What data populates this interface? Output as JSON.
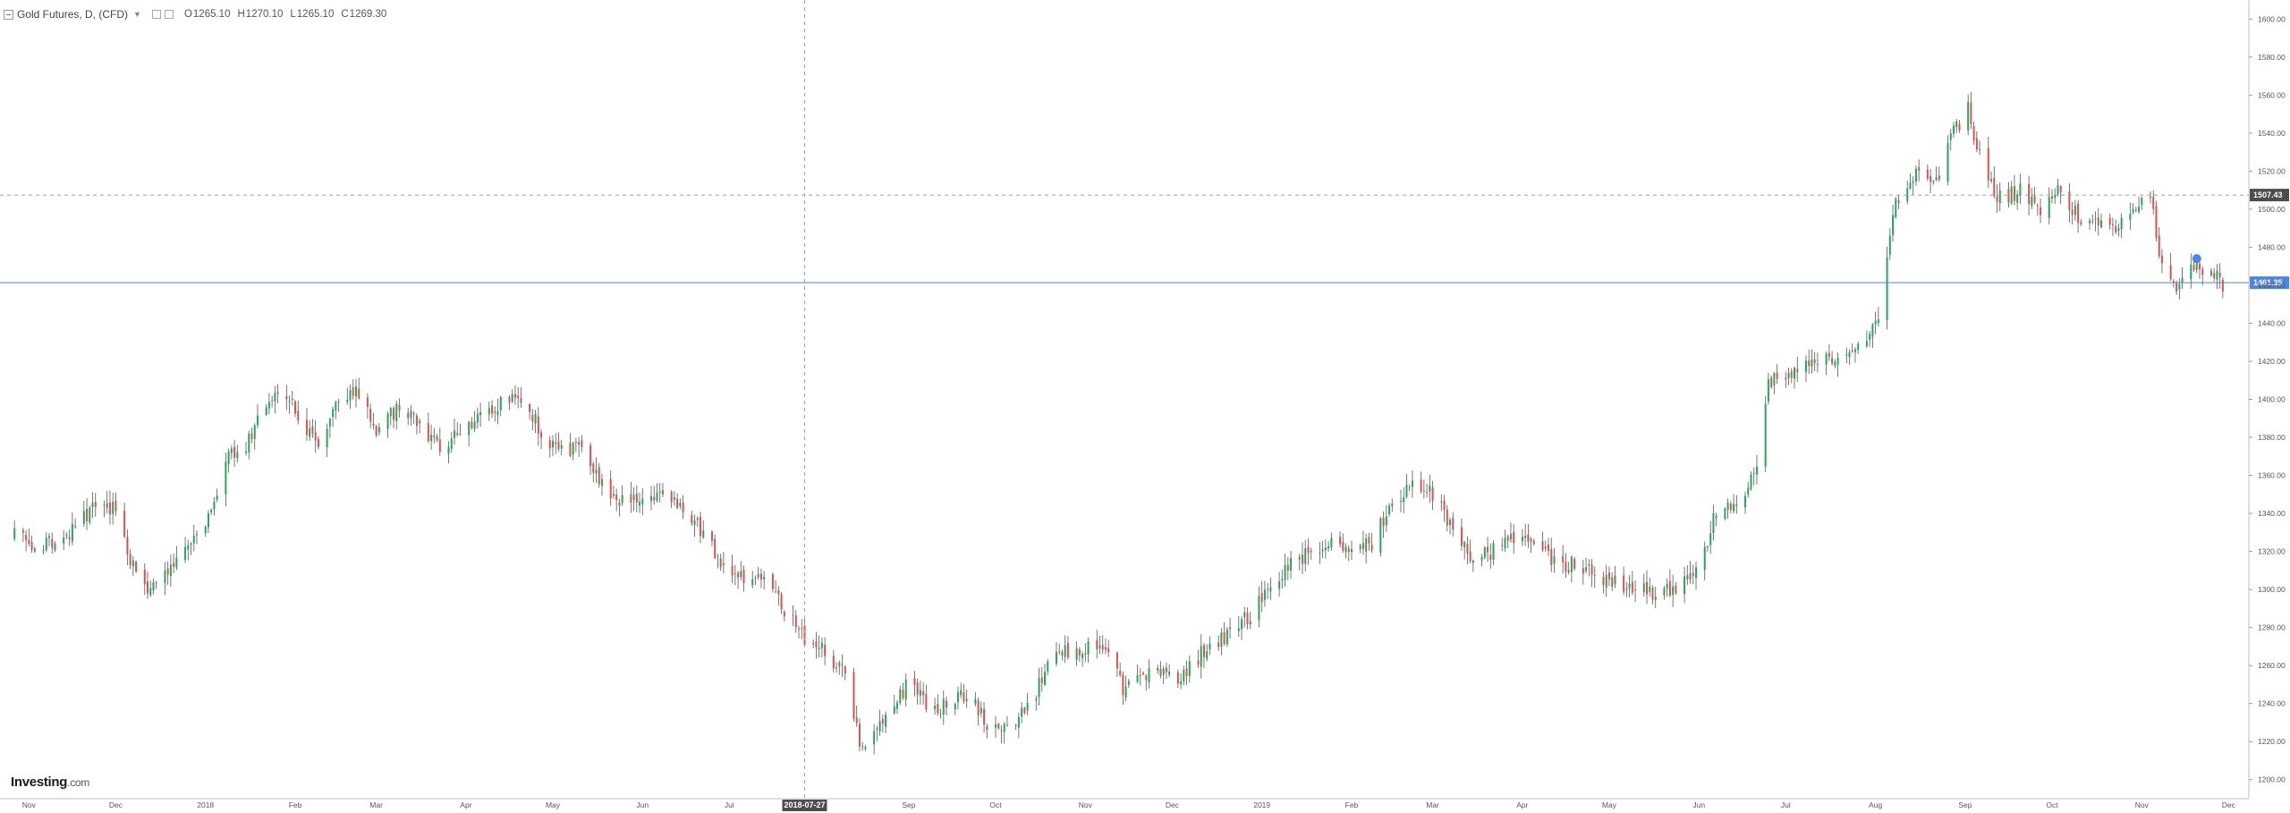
{
  "legend": {
    "title": "Gold Futures, D, (CFD)",
    "open": "1265.10",
    "high": "1270.10",
    "low": "1265.10",
    "close": "1269.30",
    "open_label": "O",
    "high_label": "H",
    "low_label": "L",
    "close_label": "C"
  },
  "logo": {
    "brand": "Investing",
    "suffix": ".com"
  },
  "colors": {
    "up": "#26a65b",
    "down": "#d9534f",
    "wick": "#555555",
    "price_line": "#4a86e8",
    "crosshair": "#9aa0a6",
    "grid_dash": "#9aa0a6"
  },
  "chart_data": {
    "type": "candlestick",
    "title": "Gold Futures, D, (CFD)",
    "ylim": [
      1190,
      1610
    ],
    "y_ticks": [
      1200,
      1220,
      1240,
      1260,
      1280,
      1300,
      1320,
      1340,
      1360,
      1380,
      1400,
      1420,
      1440,
      1460,
      1480,
      1500,
      1520,
      1540,
      1560,
      1580,
      1600
    ],
    "y_tick_labels": [
      "1200.00",
      "1220.00",
      "1240.00",
      "1260.00",
      "1280.00",
      "1300.00",
      "1320.00",
      "1340.00",
      "1360.00",
      "1380.00",
      "1400.00",
      "1420.00",
      "1440.00",
      "1460.00",
      "1480.00",
      "1500.00",
      "1520.00",
      "1540.00",
      "1560.00",
      "1580.00",
      "1600.00"
    ],
    "x_labels": [
      "Nov",
      "Dec",
      "2018",
      "Feb",
      "Mar",
      "Apr",
      "May",
      "Jun",
      "Jul",
      "2018-07-27",
      "Sep",
      "Oct",
      "Nov",
      "Dec",
      "2019",
      "Feb",
      "Mar",
      "Apr",
      "May",
      "Jun",
      "Jul",
      "Aug",
      "Sep",
      "Oct",
      "Nov",
      "Dec"
    ],
    "x_label_dates": [
      "2017-11-01",
      "2017-12-01",
      "2018-01-01",
      "2018-02-01",
      "2018-03-01",
      "2018-04-01",
      "2018-05-01",
      "2018-06-01",
      "2018-07-01",
      "2018-07-27",
      "2018-09-01",
      "2018-10-01",
      "2018-11-01",
      "2018-12-01",
      "2019-01-01",
      "2019-02-01",
      "2019-03-01",
      "2019-04-01",
      "2019-05-01",
      "2019-06-01",
      "2019-07-01",
      "2019-08-01",
      "2019-09-01",
      "2019-10-01",
      "2019-11-01",
      "2019-12-01"
    ],
    "crosshair": {
      "date": "2018-07-27",
      "price": 1507.43,
      "label": "1507.43"
    },
    "last_price": {
      "value": 1461.35,
      "label": "1461.35"
    },
    "path": [
      [
        "2017-10-27",
        1328
      ],
      [
        "2017-11-06",
        1322
      ],
      [
        "2017-11-15",
        1330
      ],
      [
        "2017-11-24",
        1345
      ],
      [
        "2017-11-30",
        1342
      ],
      [
        "2017-12-05",
        1320
      ],
      [
        "2017-12-12",
        1296
      ],
      [
        "2017-12-20",
        1312
      ],
      [
        "2017-12-27",
        1325
      ],
      [
        "2018-01-03",
        1340
      ],
      [
        "2018-01-09",
        1370
      ],
      [
        "2018-01-15",
        1375
      ],
      [
        "2018-01-20",
        1390
      ],
      [
        "2018-01-25",
        1403
      ],
      [
        "2018-02-01",
        1395
      ],
      [
        "2018-02-08",
        1375
      ],
      [
        "2018-02-15",
        1395
      ],
      [
        "2018-02-22",
        1408
      ],
      [
        "2018-03-01",
        1385
      ],
      [
        "2018-03-08",
        1395
      ],
      [
        "2018-03-15",
        1390
      ],
      [
        "2018-03-22",
        1375
      ],
      [
        "2018-04-01",
        1385
      ],
      [
        "2018-04-08",
        1392
      ],
      [
        "2018-04-15",
        1399
      ],
      [
        "2018-04-22",
        1397
      ],
      [
        "2018-04-28",
        1380
      ],
      [
        "2018-05-05",
        1372
      ],
      [
        "2018-05-12",
        1375
      ],
      [
        "2018-05-18",
        1355
      ],
      [
        "2018-05-26",
        1345
      ],
      [
        "2018-06-03",
        1350
      ],
      [
        "2018-06-10",
        1348
      ],
      [
        "2018-06-15",
        1345
      ],
      [
        "2018-06-22",
        1330
      ],
      [
        "2018-06-29",
        1312
      ],
      [
        "2018-07-06",
        1305
      ],
      [
        "2018-07-13",
        1305
      ],
      [
        "2018-07-20",
        1290
      ],
      [
        "2018-07-27",
        1275
      ],
      [
        "2018-08-03",
        1268
      ],
      [
        "2018-08-10",
        1255
      ],
      [
        "2018-08-16",
        1215
      ],
      [
        "2018-08-24",
        1235
      ],
      [
        "2018-09-01",
        1250
      ],
      [
        "2018-09-08",
        1238
      ],
      [
        "2018-09-15",
        1240
      ],
      [
        "2018-09-22",
        1245
      ],
      [
        "2018-09-28",
        1230
      ],
      [
        "2018-10-06",
        1228
      ],
      [
        "2018-10-13",
        1240
      ],
      [
        "2018-10-20",
        1262
      ],
      [
        "2018-10-27",
        1268
      ],
      [
        "2018-11-03",
        1270
      ],
      [
        "2018-11-08",
        1268
      ],
      [
        "2018-11-14",
        1248
      ],
      [
        "2018-11-20",
        1255
      ],
      [
        "2018-11-28",
        1255
      ],
      [
        "2018-12-05",
        1255
      ],
      [
        "2018-12-12",
        1268
      ],
      [
        "2018-12-19",
        1275
      ],
      [
        "2018-12-27",
        1285
      ],
      [
        "2019-01-04",
        1300
      ],
      [
        "2019-01-11",
        1315
      ],
      [
        "2019-01-18",
        1320
      ],
      [
        "2019-01-25",
        1325
      ],
      [
        "2019-02-01",
        1320
      ],
      [
        "2019-02-08",
        1325
      ],
      [
        "2019-02-14",
        1342
      ],
      [
        "2019-02-20",
        1355
      ],
      [
        "2019-02-26",
        1355
      ],
      [
        "2019-03-04",
        1345
      ],
      [
        "2019-03-08",
        1330
      ],
      [
        "2019-03-15",
        1315
      ],
      [
        "2019-03-22",
        1320
      ],
      [
        "2019-03-28",
        1325
      ],
      [
        "2019-04-04",
        1328
      ],
      [
        "2019-04-12",
        1315
      ],
      [
        "2019-04-20",
        1312
      ],
      [
        "2019-04-27",
        1308
      ],
      [
        "2019-05-04",
        1302
      ],
      [
        "2019-05-11",
        1300
      ],
      [
        "2019-05-18",
        1298
      ],
      [
        "2019-05-26",
        1302
      ],
      [
        "2019-06-01",
        1310
      ],
      [
        "2019-06-06",
        1338
      ],
      [
        "2019-06-13",
        1345
      ],
      [
        "2019-06-20",
        1358
      ],
      [
        "2019-06-25",
        1410
      ],
      [
        "2019-07-01",
        1412
      ],
      [
        "2019-07-08",
        1418
      ],
      [
        "2019-07-15",
        1420
      ],
      [
        "2019-07-22",
        1425
      ],
      [
        "2019-07-29",
        1430
      ],
      [
        "2019-08-03",
        1450
      ],
      [
        "2019-08-08",
        1505
      ],
      [
        "2019-08-15",
        1520
      ],
      [
        "2019-08-21",
        1510
      ],
      [
        "2019-08-27",
        1538
      ],
      [
        "2019-09-02",
        1552
      ],
      [
        "2019-09-08",
        1515
      ],
      [
        "2019-09-14",
        1505
      ],
      [
        "2019-09-20",
        1510
      ],
      [
        "2019-09-27",
        1500
      ],
      [
        "2019-10-04",
        1510
      ],
      [
        "2019-10-10",
        1495
      ],
      [
        "2019-10-17",
        1490
      ],
      [
        "2019-10-24",
        1492
      ],
      [
        "2019-10-30",
        1500
      ],
      [
        "2019-11-04",
        1508
      ],
      [
        "2019-11-08",
        1470
      ],
      [
        "2019-11-12",
        1458
      ],
      [
        "2019-11-19",
        1472
      ],
      [
        "2019-11-25",
        1465
      ],
      [
        "2019-11-29",
        1461
      ]
    ]
  }
}
